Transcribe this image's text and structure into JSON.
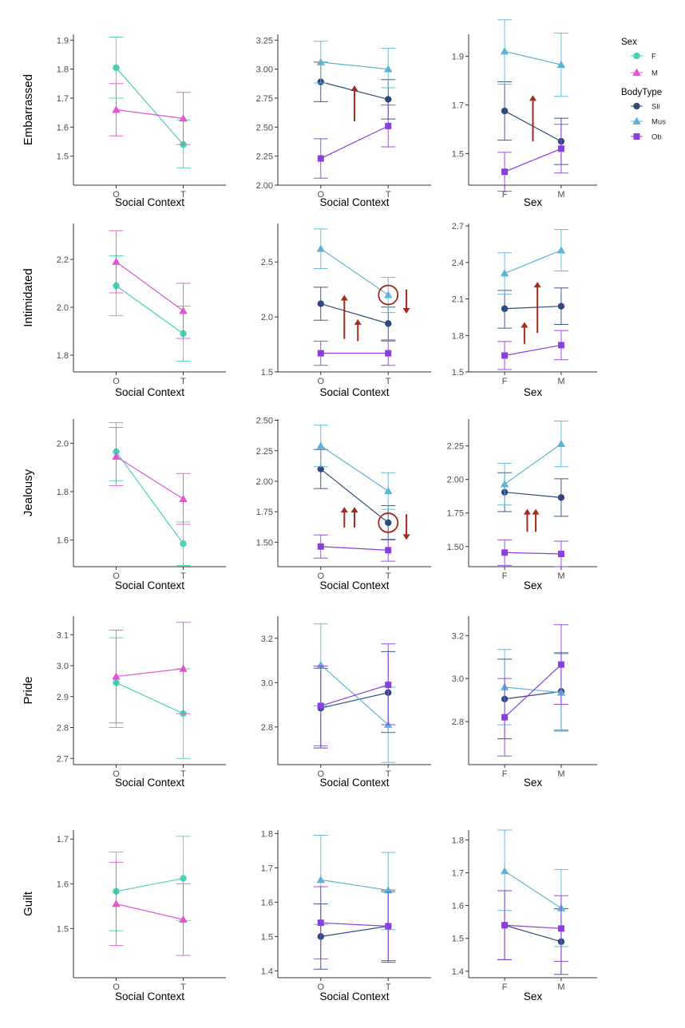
{
  "colors": {
    "F": "#49d1b6",
    "M": "#e354d3",
    "Sli": "#2f4a7e",
    "Mus": "#5fb3d8",
    "Ob": "#8a3ee0",
    "annotation": "#a62a19",
    "axis": "#333333"
  },
  "legend": {
    "sex_title": "Sex",
    "sex_items": [
      {
        "key": "F",
        "label": "F",
        "marker": "circle"
      },
      {
        "key": "M",
        "label": "M",
        "marker": "triangle"
      }
    ],
    "body_title": "BodyType",
    "body_items": [
      {
        "key": "Sli",
        "label": "Sli",
        "marker": "circle"
      },
      {
        "key": "Mus",
        "label": "Mus",
        "marker": "triangle"
      },
      {
        "key": "Ob",
        "label": "Ob",
        "marker": "square"
      }
    ]
  },
  "chart_data": [
    {
      "type": "line",
      "row_label": "Embarrassed",
      "xlabel": "Social Context",
      "categories": [
        "O",
        "T"
      ],
      "ylim": [
        1.4,
        1.92
      ],
      "yticks": [
        "1.5",
        "1.6",
        "1.7",
        "1.8",
        "1.9"
      ],
      "series": [
        {
          "name": "F",
          "color_key": "F",
          "marker": "circle",
          "values": [
            1.805,
            1.54
          ],
          "lo": [
            1.7,
            1.46
          ],
          "hi": [
            1.91,
            1.625
          ]
        },
        {
          "name": "M",
          "color_key": "M",
          "marker": "triangle",
          "values": [
            1.66,
            1.63
          ],
          "lo": [
            1.57,
            1.54
          ],
          "hi": [
            1.75,
            1.72
          ]
        }
      ],
      "annotations": []
    },
    {
      "type": "line",
      "row_label": "",
      "xlabel": "Social Context",
      "categories": [
        "O",
        "T"
      ],
      "ylim": [
        2.0,
        3.3
      ],
      "yticks": [
        "2.00",
        "2.25",
        "2.50",
        "2.75",
        "3.00",
        "3.25"
      ],
      "series": [
        {
          "name": "Sli",
          "color_key": "Sli",
          "marker": "circle",
          "values": [
            2.89,
            2.74
          ],
          "lo": [
            2.72,
            2.57
          ],
          "hi": [
            3.06,
            2.91
          ]
        },
        {
          "name": "Mus",
          "color_key": "Mus",
          "marker": "triangle",
          "values": [
            3.06,
            3.0
          ],
          "lo": [
            2.88,
            2.84
          ],
          "hi": [
            3.24,
            3.18
          ]
        },
        {
          "name": "Ob",
          "color_key": "Ob",
          "marker": "square",
          "values": [
            2.23,
            2.51
          ],
          "lo": [
            2.06,
            2.33
          ],
          "hi": [
            2.4,
            2.69
          ]
        }
      ],
      "annotations": [
        {
          "kind": "arrow-up",
          "x": 0.5,
          "y0": 2.55,
          "y1": 2.86
        }
      ]
    },
    {
      "type": "line",
      "row_label": "",
      "xlabel": "Sex",
      "categories": [
        "F",
        "M"
      ],
      "ylim": [
        1.37,
        1.99
      ],
      "yticks": [
        "1.5",
        "1.7",
        "1.9"
      ],
      "series": [
        {
          "name": "Sli",
          "color_key": "Sli",
          "marker": "circle",
          "values": [
            1.675,
            1.55
          ],
          "lo": [
            1.555,
            1.455
          ],
          "hi": [
            1.795,
            1.645
          ]
        },
        {
          "name": "Mus",
          "color_key": "Mus",
          "marker": "triangle",
          "values": [
            1.92,
            1.865
          ],
          "lo": [
            1.785,
            1.735
          ],
          "hi": [
            2.05,
            1.995
          ]
        },
        {
          "name": "Ob",
          "color_key": "Ob",
          "marker": "square",
          "values": [
            1.425,
            1.52
          ],
          "lo": [
            1.345,
            1.42
          ],
          "hi": [
            1.505,
            1.62
          ]
        }
      ],
      "annotations": [
        {
          "kind": "arrow-up",
          "x": 0.5,
          "y0": 1.55,
          "y1": 1.74
        }
      ]
    },
    {
      "type": "line",
      "row_label": "Intimidated",
      "xlabel": "Social Context",
      "categories": [
        "O",
        "T"
      ],
      "ylim": [
        1.73,
        2.35
      ],
      "yticks": [
        "1.8",
        "2.0",
        "2.2"
      ],
      "series": [
        {
          "name": "F",
          "color_key": "F",
          "marker": "circle",
          "values": [
            2.09,
            1.89
          ],
          "lo": [
            1.965,
            1.775
          ],
          "hi": [
            2.215,
            2.005
          ]
        },
        {
          "name": "M",
          "color_key": "M",
          "marker": "triangle",
          "values": [
            2.19,
            1.985
          ],
          "lo": [
            2.06,
            1.87
          ],
          "hi": [
            2.32,
            2.1
          ]
        }
      ],
      "annotations": []
    },
    {
      "type": "line",
      "row_label": "",
      "xlabel": "Social Context",
      "categories": [
        "O",
        "T"
      ],
      "ylim": [
        1.5,
        2.85
      ],
      "yticks": [
        "1.5",
        "2.0",
        "2.5"
      ],
      "series": [
        {
          "name": "Sli",
          "color_key": "Sli",
          "marker": "circle",
          "values": [
            2.12,
            1.94
          ],
          "lo": [
            1.97,
            1.79
          ],
          "hi": [
            2.27,
            2.09
          ]
        },
        {
          "name": "Mus",
          "color_key": "Mus",
          "marker": "triangle",
          "values": [
            2.62,
            2.2
          ],
          "lo": [
            2.44,
            2.04
          ],
          "hi": [
            2.8,
            2.36
          ]
        },
        {
          "name": "Ob",
          "color_key": "Ob",
          "marker": "square",
          "values": [
            1.67,
            1.67
          ],
          "lo": [
            1.56,
            1.56
          ],
          "hi": [
            1.78,
            1.78
          ]
        }
      ],
      "annotations": [
        {
          "kind": "arrow-up",
          "x": 0.35,
          "y0": 1.8,
          "y1": 2.2
        },
        {
          "kind": "arrow-up",
          "x": 0.55,
          "y0": 1.78,
          "y1": 1.98
        },
        {
          "kind": "circle",
          "x": 1.0,
          "y": 2.2
        },
        {
          "kind": "arrow-down",
          "x": 1.27,
          "y0": 2.25,
          "y1": 2.03
        }
      ]
    },
    {
      "type": "line",
      "row_label": "",
      "xlabel": "Sex",
      "categories": [
        "F",
        "M"
      ],
      "ylim": [
        1.5,
        2.72
      ],
      "yticks": [
        "1.5",
        "1.8",
        "2.1",
        "2.4",
        "2.7"
      ],
      "series": [
        {
          "name": "Sli",
          "color_key": "Sli",
          "marker": "circle",
          "values": [
            2.02,
            2.04
          ],
          "lo": [
            1.86,
            1.89
          ],
          "hi": [
            2.17,
            2.19
          ]
        },
        {
          "name": "Mus",
          "color_key": "Mus",
          "marker": "triangle",
          "values": [
            2.31,
            2.5
          ],
          "lo": [
            2.14,
            2.33
          ],
          "hi": [
            2.48,
            2.67
          ]
        },
        {
          "name": "Ob",
          "color_key": "Ob",
          "marker": "square",
          "values": [
            1.635,
            1.72
          ],
          "lo": [
            1.52,
            1.6
          ],
          "hi": [
            1.75,
            1.84
          ]
        }
      ],
      "annotations": [
        {
          "kind": "arrow-up",
          "x": 0.35,
          "y0": 1.73,
          "y1": 1.91
        },
        {
          "kind": "arrow-up",
          "x": 0.58,
          "y0": 1.82,
          "y1": 2.24
        }
      ]
    },
    {
      "type": "line",
      "row_label": "Jealousy",
      "xlabel": "Social Context",
      "categories": [
        "O",
        "T"
      ],
      "ylim": [
        1.49,
        2.1
      ],
      "yticks": [
        "1.6",
        "1.8",
        "2.0"
      ],
      "series": [
        {
          "name": "F",
          "color_key": "F",
          "marker": "circle",
          "values": [
            1.965,
            1.585
          ],
          "lo": [
            1.845,
            1.495
          ],
          "hi": [
            2.085,
            1.675
          ]
        },
        {
          "name": "M",
          "color_key": "M",
          "marker": "triangle",
          "values": [
            1.945,
            1.77
          ],
          "lo": [
            1.825,
            1.665
          ],
          "hi": [
            2.065,
            1.875
          ]
        }
      ],
      "annotations": []
    },
    {
      "type": "line",
      "row_label": "",
      "xlabel": "Social Context",
      "categories": [
        "O",
        "T"
      ],
      "ylim": [
        1.3,
        2.51
      ],
      "yticks": [
        "1.50",
        "1.75",
        "2.00",
        "2.25",
        "2.50"
      ],
      "series": [
        {
          "name": "Sli",
          "color_key": "Sli",
          "marker": "circle",
          "values": [
            2.1,
            1.66
          ],
          "lo": [
            1.94,
            1.52
          ],
          "hi": [
            2.26,
            1.8
          ]
        },
        {
          "name": "Mus",
          "color_key": "Mus",
          "marker": "triangle",
          "values": [
            2.29,
            1.92
          ],
          "lo": [
            2.12,
            1.77
          ],
          "hi": [
            2.46,
            2.07
          ]
        },
        {
          "name": "Ob",
          "color_key": "Ob",
          "marker": "square",
          "values": [
            1.465,
            1.435
          ],
          "lo": [
            1.37,
            1.345
          ],
          "hi": [
            1.56,
            1.525
          ]
        }
      ],
      "annotations": [
        {
          "kind": "arrow-up",
          "x": 0.35,
          "y0": 1.62,
          "y1": 1.79
        },
        {
          "kind": "arrow-up",
          "x": 0.5,
          "y0": 1.62,
          "y1": 1.79
        },
        {
          "kind": "circle",
          "x": 1.0,
          "y": 1.66
        },
        {
          "kind": "arrow-down",
          "x": 1.27,
          "y0": 1.73,
          "y1": 1.52
        }
      ]
    },
    {
      "type": "line",
      "row_label": "",
      "xlabel": "Sex",
      "categories": [
        "F",
        "M"
      ],
      "ylim": [
        1.35,
        2.45
      ],
      "yticks": [
        "1.50",
        "1.75",
        "2.00",
        "2.25"
      ],
      "series": [
        {
          "name": "Sli",
          "color_key": "Sli",
          "marker": "circle",
          "values": [
            1.905,
            1.865
          ],
          "lo": [
            1.76,
            1.725
          ],
          "hi": [
            2.05,
            2.005
          ]
        },
        {
          "name": "Mus",
          "color_key": "Mus",
          "marker": "triangle",
          "values": [
            1.965,
            2.265
          ],
          "lo": [
            1.81,
            2.095
          ],
          "hi": [
            2.12,
            2.435
          ]
        },
        {
          "name": "Ob",
          "color_key": "Ob",
          "marker": "square",
          "values": [
            1.455,
            1.445
          ],
          "lo": [
            1.36,
            1.35
          ],
          "hi": [
            1.55,
            1.54
          ]
        }
      ],
      "annotations": [
        {
          "kind": "arrow-up",
          "x": 0.4,
          "y0": 1.61,
          "y1": 1.78
        },
        {
          "kind": "arrow-up",
          "x": 0.55,
          "y0": 1.61,
          "y1": 1.78
        }
      ]
    },
    {
      "type": "line",
      "row_label": "Pride",
      "xlabel": "Social Context",
      "categories": [
        "O",
        "T"
      ],
      "ylim": [
        2.68,
        3.16
      ],
      "yticks": [
        "2.7",
        "2.8",
        "2.9",
        "3.0",
        "3.1"
      ],
      "series": [
        {
          "name": "F",
          "color_key": "F",
          "marker": "circle",
          "values": [
            2.945,
            2.845
          ],
          "lo": [
            2.8,
            2.7
          ],
          "hi": [
            3.09,
            2.99
          ]
        },
        {
          "name": "M",
          "color_key": "M",
          "marker": "triangle",
          "values": [
            2.965,
            2.99
          ],
          "lo": [
            2.815,
            2.845
          ],
          "hi": [
            3.115,
            3.14
          ]
        }
      ],
      "annotations": []
    },
    {
      "type": "line",
      "row_label": "",
      "xlabel": "Social Context",
      "categories": [
        "O",
        "T"
      ],
      "ylim": [
        2.63,
        3.3
      ],
      "yticks": [
        "2.8",
        "3.0",
        "3.2"
      ],
      "series": [
        {
          "name": "Sli",
          "color_key": "Sli",
          "marker": "circle",
          "values": [
            2.885,
            2.955
          ],
          "lo": [
            2.705,
            2.775
          ],
          "hi": [
            3.065,
            3.14
          ]
        },
        {
          "name": "Mus",
          "color_key": "Mus",
          "marker": "triangle",
          "values": [
            3.08,
            2.81
          ],
          "lo": [
            2.895,
            2.64
          ],
          "hi": [
            3.265,
            2.98
          ]
        },
        {
          "name": "Ob",
          "color_key": "Ob",
          "marker": "square",
          "values": [
            2.895,
            2.99
          ],
          "lo": [
            2.715,
            2.81
          ],
          "hi": [
            3.075,
            3.175
          ]
        }
      ],
      "annotations": []
    },
    {
      "type": "line",
      "row_label": "",
      "xlabel": "Sex",
      "categories": [
        "F",
        "M"
      ],
      "ylim": [
        2.6,
        3.29
      ],
      "yticks": [
        "2.8",
        "3.0",
        "3.2"
      ],
      "series": [
        {
          "name": "Sli",
          "color_key": "Sli",
          "marker": "circle",
          "values": [
            2.905,
            2.94
          ],
          "lo": [
            2.72,
            2.76
          ],
          "hi": [
            3.09,
            3.12
          ]
        },
        {
          "name": "Mus",
          "color_key": "Mus",
          "marker": "triangle",
          "values": [
            2.96,
            2.935
          ],
          "lo": [
            2.785,
            2.755
          ],
          "hi": [
            3.135,
            3.115
          ]
        },
        {
          "name": "Ob",
          "color_key": "Ob",
          "marker": "square",
          "values": [
            2.82,
            3.065
          ],
          "lo": [
            2.64,
            2.88
          ],
          "hi": [
            3.0,
            3.25
          ]
        }
      ],
      "annotations": []
    },
    {
      "type": "line",
      "row_label": "Guilt",
      "xlabel": "Social Context",
      "categories": [
        "O",
        "T"
      ],
      "ylim": [
        1.39,
        1.72
      ],
      "yticks": [
        "1.5",
        "1.6",
        "1.7"
      ],
      "series": [
        {
          "name": "F",
          "color_key": "F",
          "marker": "circle",
          "values": [
            1.583,
            1.612
          ],
          "lo": [
            1.495,
            1.518
          ],
          "hi": [
            1.671,
            1.706
          ]
        },
        {
          "name": "M",
          "color_key": "M",
          "marker": "triangle",
          "values": [
            1.555,
            1.52
          ],
          "lo": [
            1.462,
            1.44
          ],
          "hi": [
            1.648,
            1.6
          ]
        }
      ],
      "annotations": []
    },
    {
      "type": "line",
      "row_label": "",
      "xlabel": "Social Context",
      "categories": [
        "O",
        "T"
      ],
      "ylim": [
        1.38,
        1.81
      ],
      "yticks": [
        "1.4",
        "1.5",
        "1.6",
        "1.7",
        "1.8"
      ],
      "series": [
        {
          "name": "Sli",
          "color_key": "Sli",
          "marker": "circle",
          "values": [
            1.5,
            1.53
          ],
          "lo": [
            1.405,
            1.425
          ],
          "hi": [
            1.595,
            1.635
          ]
        },
        {
          "name": "Mus",
          "color_key": "Mus",
          "marker": "triangle",
          "values": [
            1.665,
            1.635
          ],
          "lo": [
            1.535,
            1.52
          ],
          "hi": [
            1.795,
            1.745
          ]
        },
        {
          "name": "Ob",
          "color_key": "Ob",
          "marker": "square",
          "values": [
            1.54,
            1.53
          ],
          "lo": [
            1.435,
            1.43
          ],
          "hi": [
            1.645,
            1.63
          ]
        }
      ],
      "annotations": []
    },
    {
      "type": "line",
      "row_label": "",
      "xlabel": "Sex",
      "categories": [
        "F",
        "M"
      ],
      "ylim": [
        1.38,
        1.83
      ],
      "yticks": [
        "1.4",
        "1.5",
        "1.6",
        "1.7",
        "1.8"
      ],
      "series": [
        {
          "name": "Sli",
          "color_key": "Sli",
          "marker": "circle",
          "values": [
            1.54,
            1.49
          ],
          "lo": [
            1.435,
            1.39
          ],
          "hi": [
            1.645,
            1.59
          ]
        },
        {
          "name": "Mus",
          "color_key": "Mus",
          "marker": "triangle",
          "values": [
            1.705,
            1.592
          ],
          "lo": [
            1.585,
            1.475
          ],
          "hi": [
            1.83,
            1.71
          ]
        },
        {
          "name": "Ob",
          "color_key": "Ob",
          "marker": "square",
          "values": [
            1.54,
            1.53
          ],
          "lo": [
            1.435,
            1.43
          ],
          "hi": [
            1.645,
            1.63
          ]
        }
      ],
      "annotations": []
    }
  ]
}
